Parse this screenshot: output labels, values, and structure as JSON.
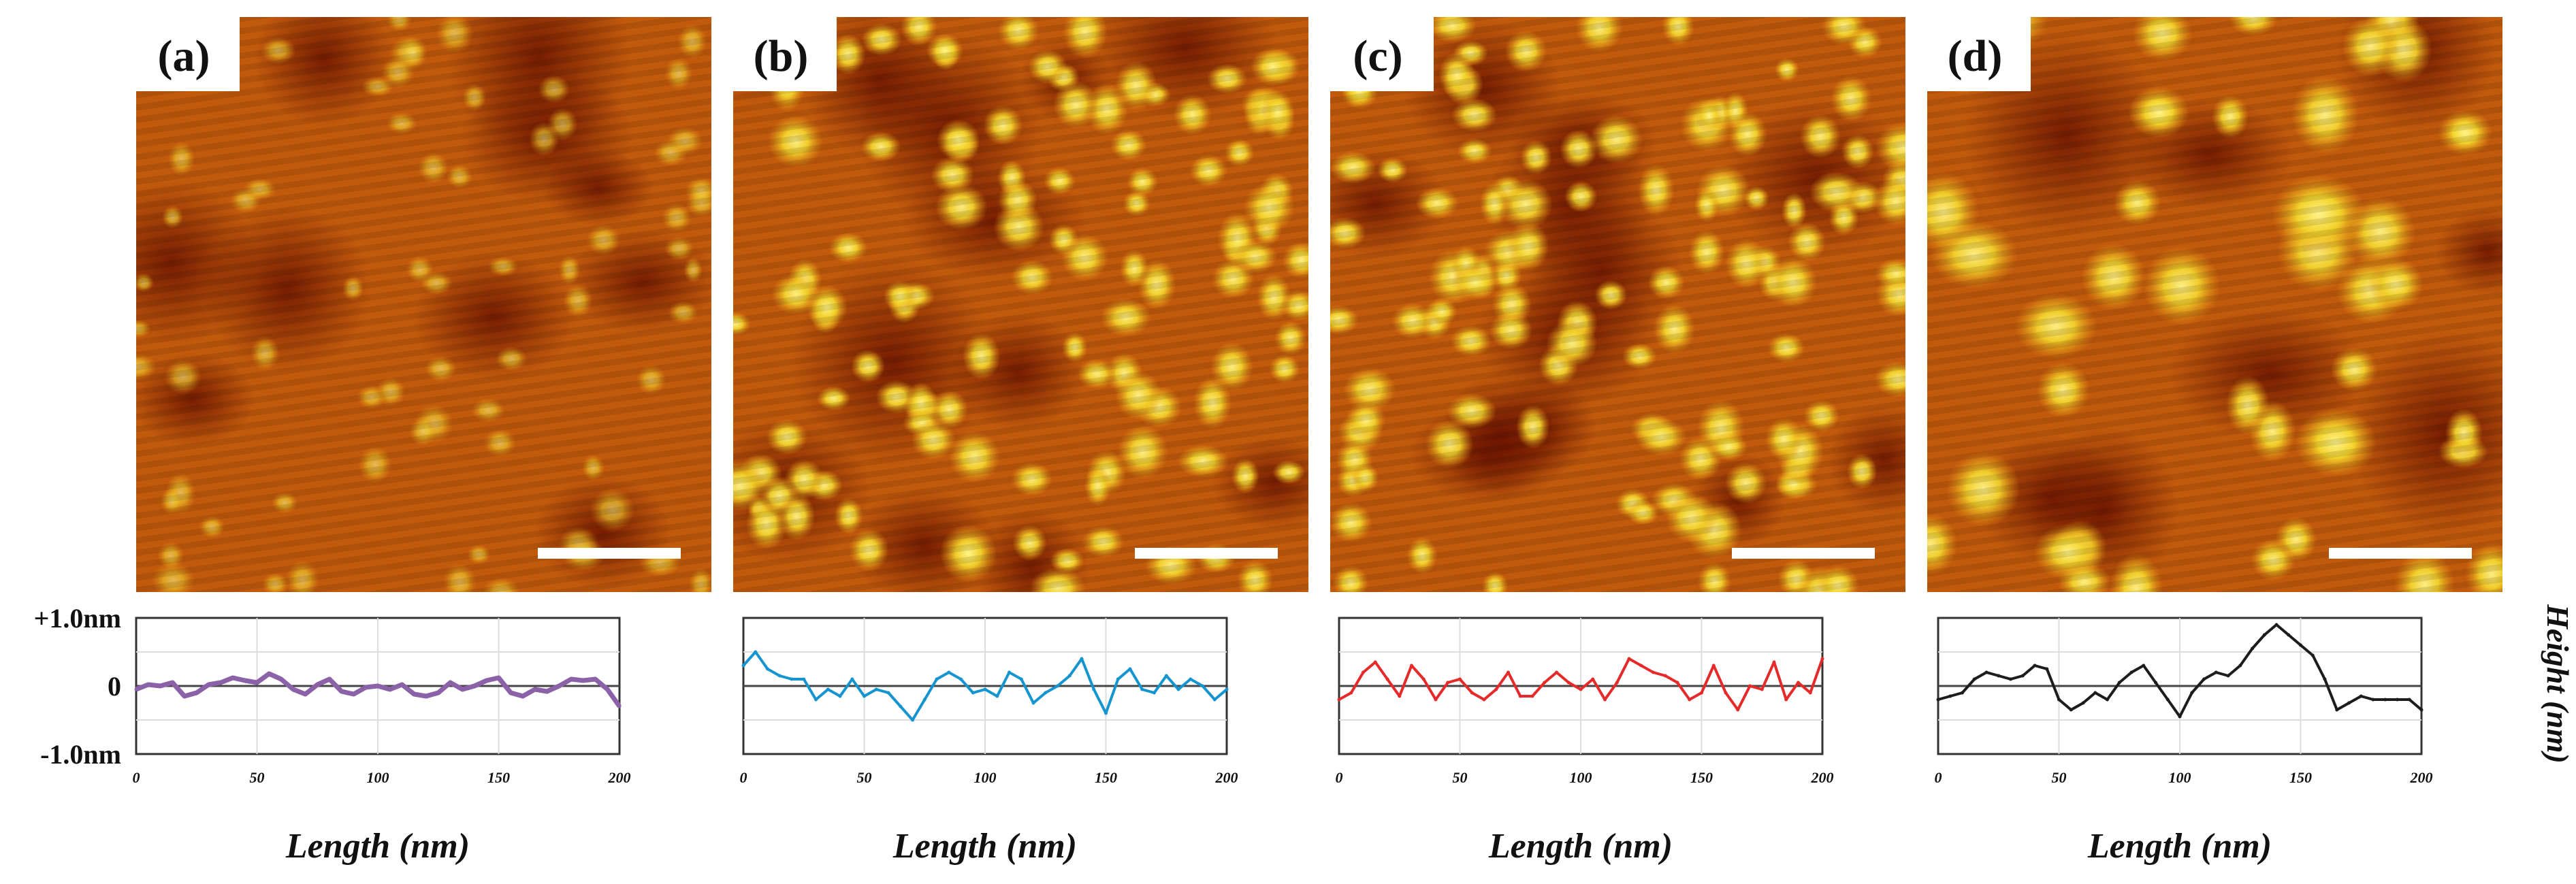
{
  "figure": {
    "y_tick_labels": [
      "+1.0nm",
      "0",
      "-1.0nm"
    ],
    "y_axis_label": "Height (nm)",
    "x_axis_label": "Length (nm)",
    "x_tick_labels": [
      "0",
      "50",
      "100",
      "150",
      "200"
    ]
  },
  "colors": {
    "afm_low": "#8a1e02",
    "afm_mid": "#c25a0c",
    "afm_high": "#f6e03a",
    "series_a": "#8b62a8",
    "series_b": "#1595d0",
    "series_c": "#e62a2a",
    "series_d": "#1c1c1c",
    "axis": "#333333",
    "grid": "#dddddd"
  },
  "panels": [
    {
      "label": "(a)",
      "afm_image": "afm-topography-a",
      "particles": "dense-small-faint",
      "scale_bar": "scale-bar"
    },
    {
      "label": "(b)",
      "afm_image": "afm-topography-b",
      "particles": "dense-medium",
      "scale_bar": "scale-bar"
    },
    {
      "label": "(c)",
      "afm_image": "afm-topography-c",
      "particles": "dense-medium",
      "scale_bar": "scale-bar"
    },
    {
      "label": "(d)",
      "afm_image": "afm-topography-d",
      "particles": "sparse-large",
      "scale_bar": "scale-bar"
    }
  ],
  "chart_data": [
    {
      "type": "line",
      "panel": "(a)",
      "xlabel": "Length (nm)",
      "ylabel": "Height (nm)",
      "xlim": [
        0,
        200
      ],
      "ylim": [
        -1.0,
        1.0
      ],
      "x_ticks": [
        0,
        50,
        100,
        150,
        200
      ],
      "y_ticks": [
        "+1.0nm",
        "0",
        "-1.0nm"
      ],
      "series": [
        {
          "name": "(a)",
          "color": "#8b62a8",
          "x": [
            0,
            5,
            10,
            15,
            20,
            25,
            30,
            35,
            40,
            45,
            50,
            55,
            60,
            65,
            70,
            75,
            80,
            85,
            90,
            95,
            100,
            105,
            110,
            115,
            120,
            125,
            130,
            135,
            140,
            145,
            150,
            155,
            160,
            165,
            170,
            175,
            180,
            185,
            190,
            195,
            200
          ],
          "y": [
            -0.05,
            0.02,
            0.0,
            0.05,
            -0.15,
            -0.1,
            0.02,
            0.05,
            0.12,
            0.08,
            0.05,
            0.18,
            0.1,
            -0.05,
            -0.12,
            0.02,
            0.1,
            -0.08,
            -0.12,
            -0.02,
            0.0,
            -0.05,
            0.02,
            -0.12,
            -0.15,
            -0.1,
            0.05,
            -0.05,
            0.0,
            0.08,
            0.12,
            -0.1,
            -0.15,
            -0.05,
            -0.08,
            0.0,
            0.1,
            0.08,
            0.1,
            -0.05,
            -0.3
          ]
        }
      ]
    },
    {
      "type": "line",
      "panel": "(b)",
      "xlabel": "Length (nm)",
      "ylabel": "Height (nm)",
      "xlim": [
        0,
        200
      ],
      "ylim": [
        -1.0,
        1.0
      ],
      "x_ticks": [
        0,
        50,
        100,
        150,
        200
      ],
      "y_ticks": [
        "+1.0nm",
        "0",
        "-1.0nm"
      ],
      "series": [
        {
          "name": "(b)",
          "color": "#1595d0",
          "x": [
            0,
            5,
            10,
            15,
            20,
            25,
            30,
            35,
            40,
            45,
            50,
            55,
            60,
            65,
            70,
            75,
            80,
            85,
            90,
            95,
            100,
            105,
            110,
            115,
            120,
            125,
            130,
            135,
            140,
            145,
            150,
            155,
            160,
            165,
            170,
            175,
            180,
            185,
            190,
            195,
            200
          ],
          "y": [
            0.3,
            0.5,
            0.25,
            0.15,
            0.1,
            0.1,
            -0.2,
            -0.05,
            -0.15,
            0.1,
            -0.15,
            -0.05,
            -0.1,
            -0.3,
            -0.5,
            -0.2,
            0.1,
            0.2,
            0.1,
            -0.1,
            -0.05,
            -0.15,
            0.2,
            0.1,
            -0.25,
            -0.1,
            0.0,
            0.15,
            0.4,
            -0.05,
            -0.4,
            0.1,
            0.25,
            -0.05,
            -0.1,
            0.15,
            -0.05,
            0.1,
            0.0,
            -0.2,
            -0.05
          ]
        }
      ]
    },
    {
      "type": "line",
      "panel": "(c)",
      "xlabel": "Length (nm)",
      "ylabel": "Height (nm)",
      "xlim": [
        0,
        200
      ],
      "ylim": [
        -1.0,
        1.0
      ],
      "x_ticks": [
        0,
        50,
        100,
        150,
        200
      ],
      "y_ticks": [
        "+1.0nm",
        "0",
        "-1.0nm"
      ],
      "series": [
        {
          "name": "(c)",
          "color": "#e62a2a",
          "x": [
            0,
            5,
            10,
            15,
            20,
            25,
            30,
            35,
            40,
            45,
            50,
            55,
            60,
            65,
            70,
            75,
            80,
            85,
            90,
            95,
            100,
            105,
            110,
            115,
            120,
            125,
            130,
            135,
            140,
            145,
            150,
            155,
            160,
            165,
            170,
            175,
            180,
            185,
            190,
            195,
            200
          ],
          "y": [
            -0.2,
            -0.1,
            0.2,
            0.35,
            0.1,
            -0.15,
            0.3,
            0.1,
            -0.2,
            0.05,
            0.1,
            -0.1,
            -0.2,
            -0.05,
            0.2,
            -0.15,
            -0.15,
            0.05,
            0.2,
            0.05,
            -0.05,
            0.1,
            -0.2,
            0.05,
            0.4,
            0.3,
            0.2,
            0.15,
            0.05,
            -0.2,
            -0.1,
            0.3,
            -0.1,
            -0.35,
            0.0,
            -0.05,
            0.35,
            -0.2,
            0.05,
            -0.1,
            0.4
          ]
        }
      ]
    },
    {
      "type": "line",
      "panel": "(d)",
      "xlabel": "Length (nm)",
      "ylabel": "Height (nm)",
      "xlim": [
        0,
        200
      ],
      "ylim": [
        -1.0,
        1.0
      ],
      "x_ticks": [
        0,
        50,
        100,
        150,
        200
      ],
      "y_ticks": [
        "+1.0nm",
        "0",
        "-1.0nm"
      ],
      "series": [
        {
          "name": "(d)",
          "color": "#1c1c1c",
          "x": [
            0,
            5,
            10,
            15,
            20,
            25,
            30,
            35,
            40,
            45,
            50,
            55,
            60,
            65,
            70,
            75,
            80,
            85,
            90,
            95,
            100,
            105,
            110,
            115,
            120,
            125,
            130,
            135,
            140,
            145,
            150,
            155,
            160,
            165,
            170,
            175,
            180,
            185,
            190,
            195,
            200
          ],
          "y": [
            -0.2,
            -0.15,
            -0.1,
            0.1,
            0.2,
            0.15,
            0.1,
            0.15,
            0.3,
            0.25,
            -0.2,
            -0.35,
            -0.25,
            -0.1,
            -0.2,
            0.05,
            0.2,
            0.3,
            0.05,
            -0.2,
            -0.45,
            -0.1,
            0.1,
            0.2,
            0.15,
            0.3,
            0.55,
            0.75,
            0.9,
            0.75,
            0.6,
            0.45,
            0.1,
            -0.35,
            -0.25,
            -0.15,
            -0.2,
            -0.2,
            -0.2,
            -0.2,
            -0.35
          ]
        }
      ]
    }
  ]
}
